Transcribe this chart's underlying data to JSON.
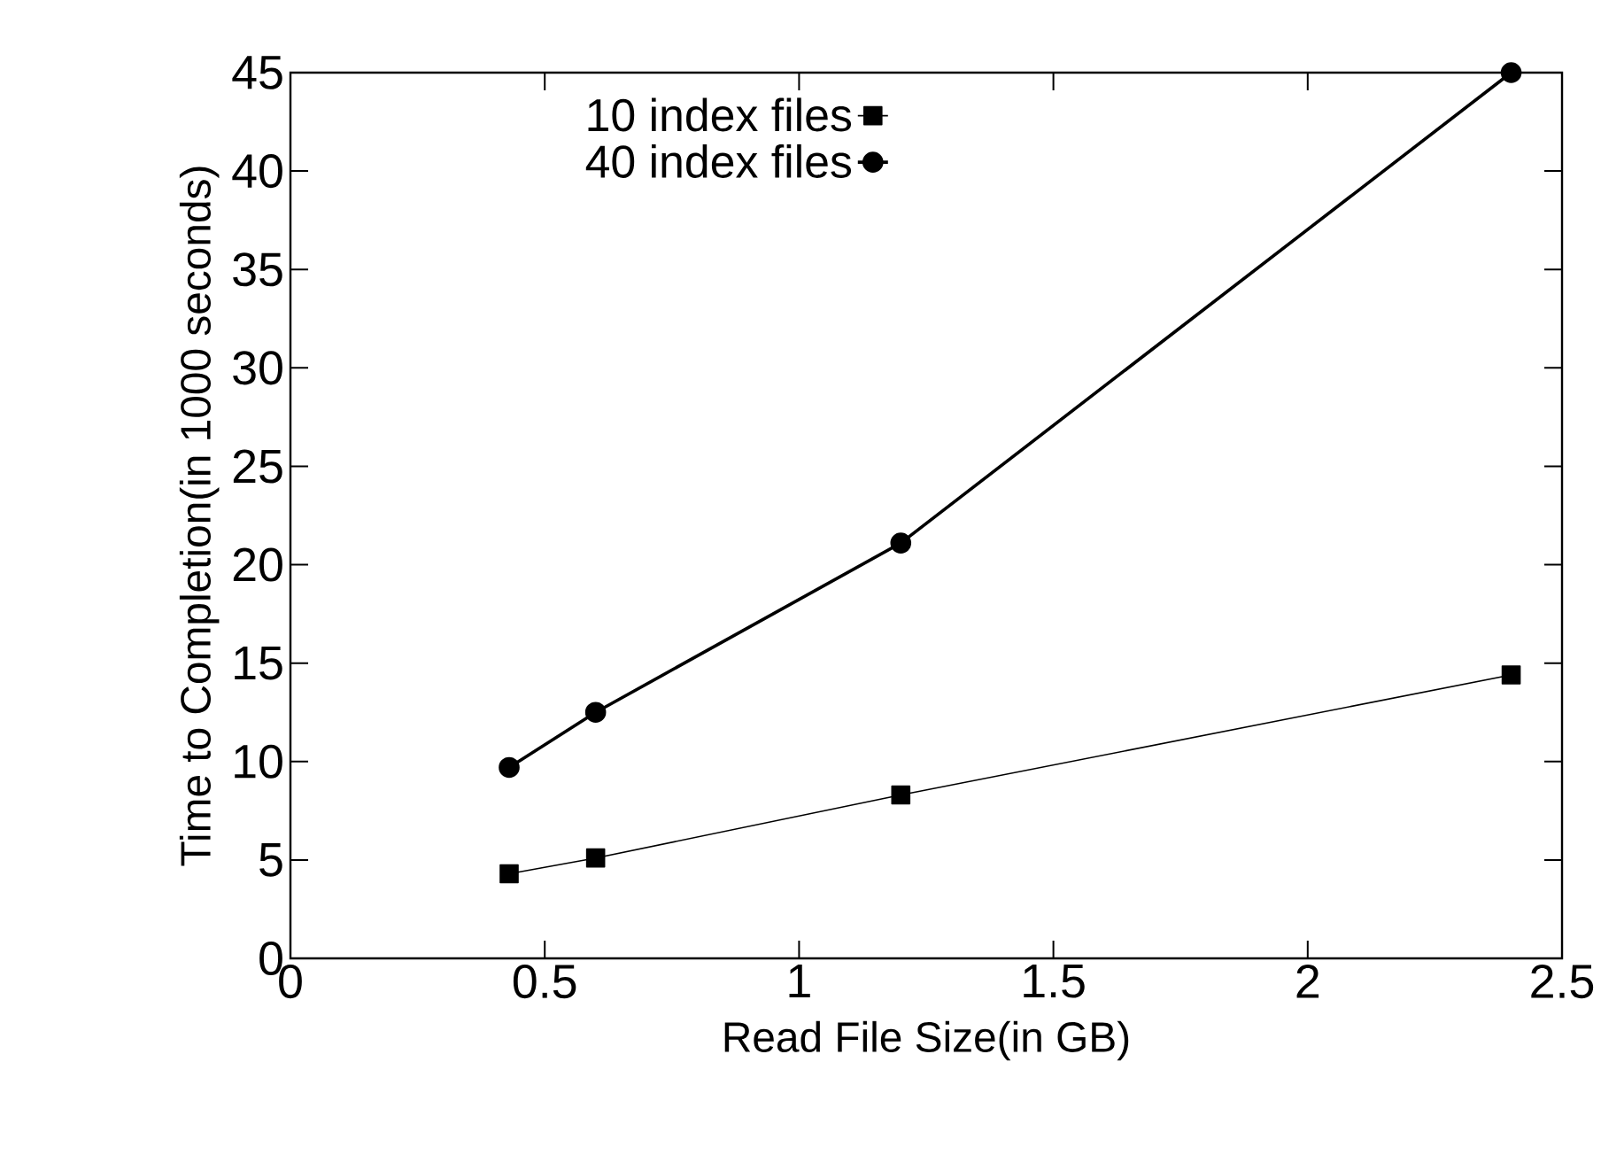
{
  "chart_data": {
    "type": "line",
    "xlabel": "Read File Size(in GB)",
    "ylabel": "Time to Completion(in 1000 seconds)",
    "xlim": [
      0,
      2.5
    ],
    "xticks": [
      0,
      0.5,
      1,
      1.5,
      2,
      2.5
    ],
    "ylim": [
      0,
      45
    ],
    "yticks": [
      0,
      5,
      10,
      15,
      20,
      25,
      30,
      35,
      40,
      45
    ],
    "grid": false,
    "legend": "top",
    "x": [
      0.43,
      0.6,
      1.2,
      2.4
    ],
    "series": [
      {
        "name": "10 index files",
        "color": "#000000",
        "marker": "square",
        "values": [
          4.3,
          5.1,
          8.3,
          14.4
        ]
      },
      {
        "name": "40 index files",
        "color": "#000000",
        "marker": "circle",
        "values": [
          9.7,
          12.5,
          21.1,
          45.0
        ]
      }
    ]
  }
}
